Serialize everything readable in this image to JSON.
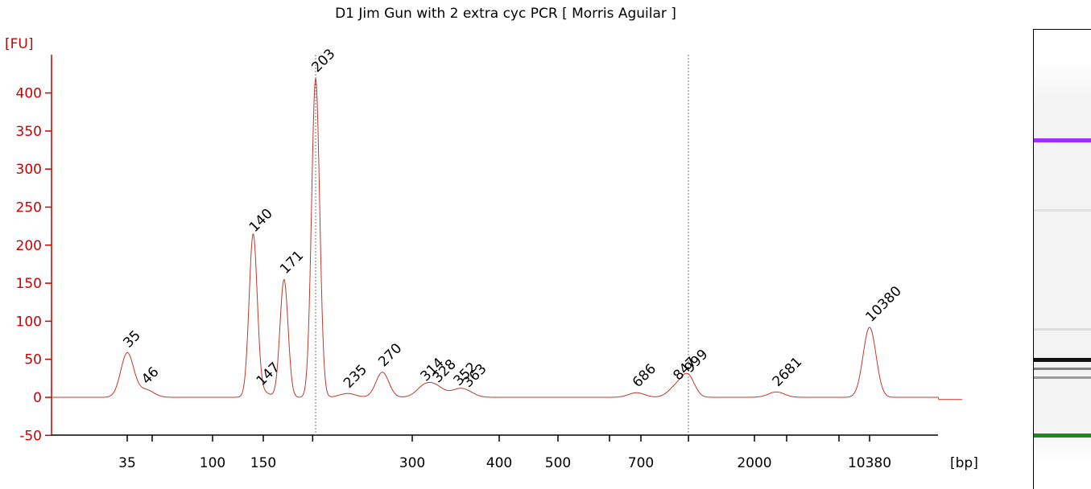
{
  "chart_data": {
    "type": "line",
    "title": "D1 Jim Gun with 2 extra cyc PCR  [ Morris Aguilar ]",
    "ylabel": "[FU]",
    "xlabel": "[bp]",
    "ylim": [
      -50,
      450
    ],
    "y_ticks": [
      "-50",
      "0",
      "50",
      "100",
      "150",
      "200",
      "250",
      "300",
      "350",
      "400"
    ],
    "x_ticks": [
      "35",
      "100",
      "150",
      "300",
      "400",
      "500",
      "700",
      "2000",
      "10380"
    ],
    "x_tick_positions_bp": [
      35,
      50,
      100,
      150,
      200,
      300,
      400,
      500,
      600,
      700,
      1000,
      2000,
      3000,
      4000,
      10380
    ],
    "x_scale": "nonlinear (electrophoresis migration)",
    "grid": false,
    "series": [
      {
        "color": "#c0392b",
        "peaks": [
          {
            "bp": 35,
            "fu": 58,
            "label": "35",
            "label_color": "#228b22"
          },
          {
            "bp": 46,
            "fu": 10,
            "label": "46"
          },
          {
            "bp": 140,
            "fu": 210,
            "label": "140"
          },
          {
            "bp": 147,
            "fu": 8,
            "label": "147"
          },
          {
            "bp": 171,
            "fu": 155,
            "label": "171"
          },
          {
            "bp": 203,
            "fu": 420,
            "label": "203"
          },
          {
            "bp": 235,
            "fu": 5,
            "label": "235"
          },
          {
            "bp": 270,
            "fu": 33,
            "label": "270"
          },
          {
            "bp": 314,
            "fu": 14,
            "label": "314"
          },
          {
            "bp": 328,
            "fu": 12,
            "label": "328"
          },
          {
            "bp": 352,
            "fu": 8,
            "label": "352"
          },
          {
            "bp": 363,
            "fu": 6,
            "label": "363"
          },
          {
            "bp": 686,
            "fu": 6,
            "label": "686"
          },
          {
            "bp": 847,
            "fu": 15,
            "label": "847"
          },
          {
            "bp": 999,
            "fu": 25,
            "label": "999"
          },
          {
            "bp": 2681,
            "fu": 7,
            "label": "2681"
          },
          {
            "bp": 10380,
            "fu": 92,
            "label": "10380",
            "label_color": "#9b30ff"
          }
        ]
      }
    ],
    "marker_lines_bp": [
      203,
      999
    ]
  },
  "gel": {
    "bands": [
      {
        "position": 0.237,
        "color": "#9b30ff",
        "intensity": 1.0
      },
      {
        "position": 0.39,
        "color": "#888888",
        "intensity": 0.15
      },
      {
        "position": 0.65,
        "color": "#888888",
        "intensity": 0.2
      },
      {
        "position": 0.715,
        "color": "#111111",
        "intensity": 1.0
      },
      {
        "position": 0.735,
        "color": "#333333",
        "intensity": 0.6
      },
      {
        "position": 0.755,
        "color": "#444444",
        "intensity": 0.5
      },
      {
        "position": 0.88,
        "color": "#1a8a1a",
        "intensity": 1.0
      }
    ]
  }
}
